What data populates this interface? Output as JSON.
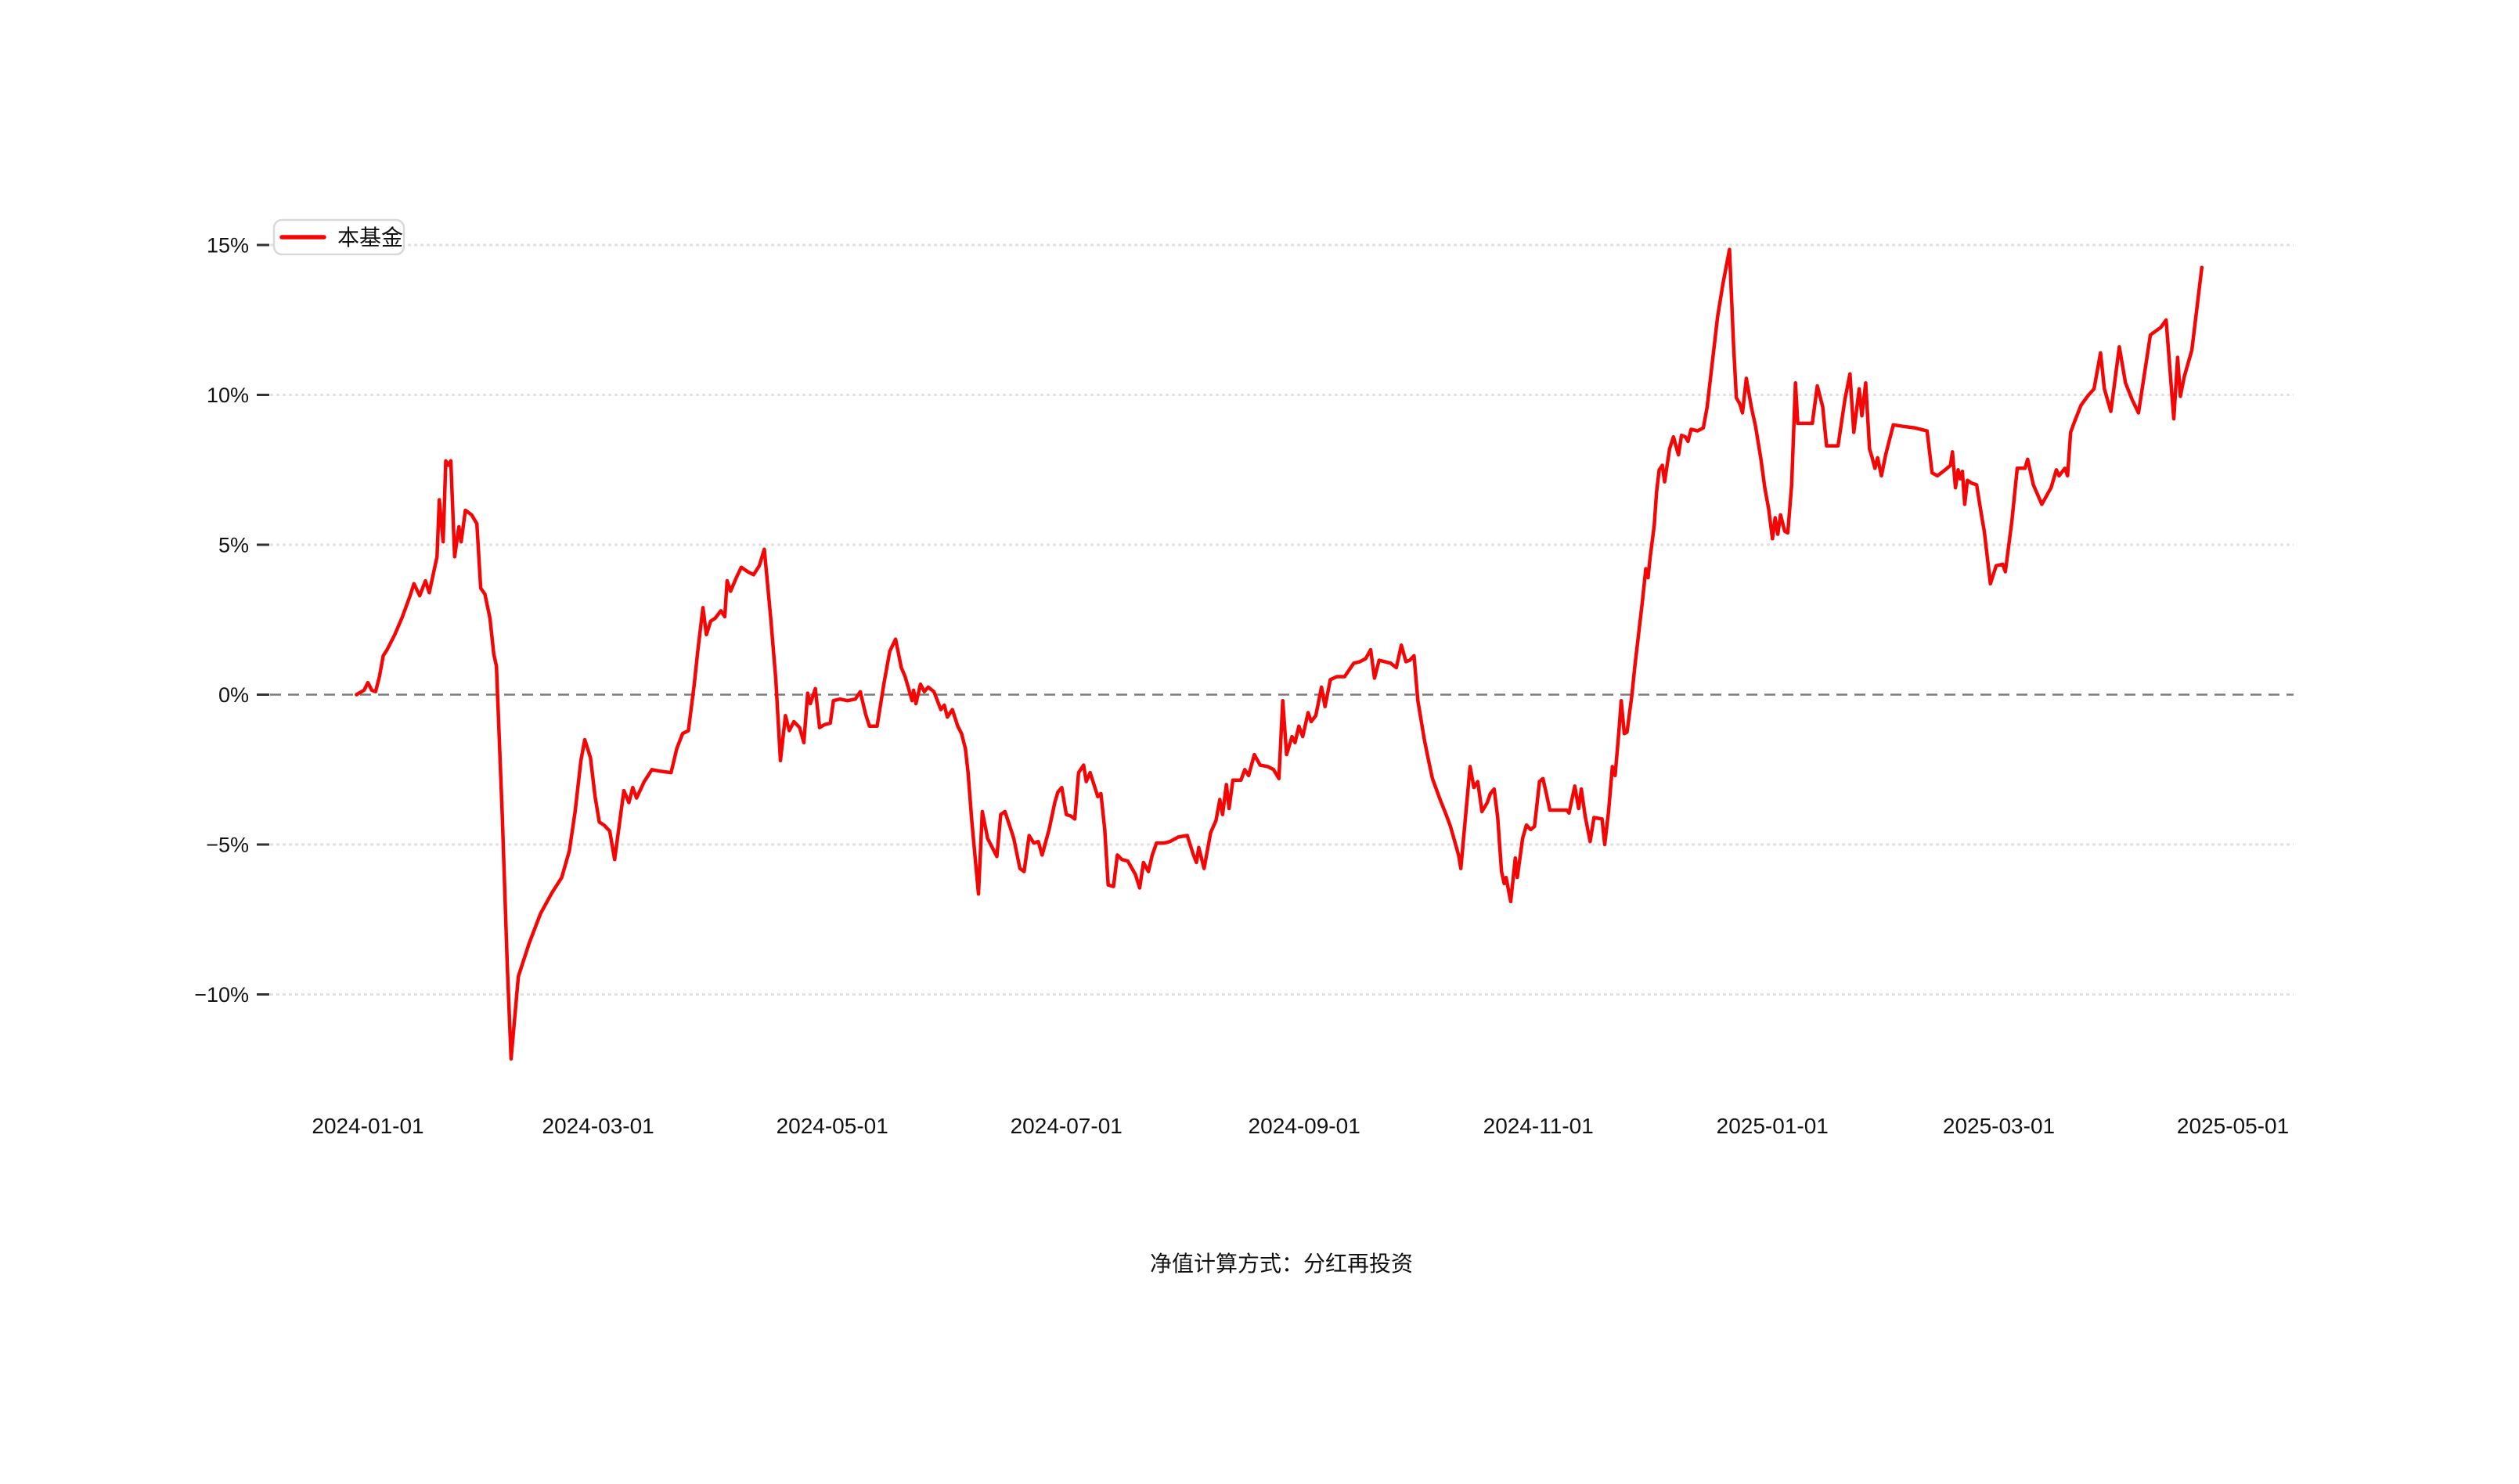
{
  "legend": {
    "label": "本基金"
  },
  "caption": {
    "text": "净值计算方式：分红再投资"
  },
  "colors": {
    "background": "#ffffff",
    "series_line": "#f40606",
    "gridline": "#e2e2e2",
    "zero_line": "#7a7a7a",
    "axis_text": "#111111",
    "tick_mark": "#333333",
    "legend_border": "#d9d9d9",
    "legend_fill": "#ffffff"
  },
  "chart_data": {
    "type": "line",
    "title": "",
    "legend_entries": [
      "本基金"
    ],
    "series_name": "本基金",
    "unit": "percent",
    "grid_on": true,
    "legend_position": "top-left",
    "x_axis": {
      "label": "",
      "tick_labels": [
        "2024-01-01",
        "2024-03-01",
        "2024-05-01",
        "2024-07-01",
        "2024-09-01",
        "2024-11-01",
        "2025-01-01",
        "2025-03-01",
        "2025-05-01"
      ],
      "tick_days": [
        0,
        60,
        121,
        182,
        244,
        305,
        366,
        425,
        486
      ],
      "domain_days": [
        -25.5,
        501.8
      ],
      "epoch": "days since 2024-01-01"
    },
    "y_axis": {
      "label": "",
      "tick_labels": [
        "15%",
        "10%",
        "5%",
        "0%",
        "−5%",
        "−10%"
      ],
      "tick_values": [
        15,
        10,
        5,
        0,
        -5,
        -10
      ],
      "range": [
        -13.5,
        16.5
      ],
      "zero_line_style": "dashed",
      "gridline_style": "dotted"
    },
    "points": [
      [
        -3,
        0
      ],
      [
        -1,
        0.15
      ],
      [
        0,
        0.4
      ],
      [
        1,
        0.15
      ],
      [
        2,
        0.1
      ],
      [
        3,
        0.6
      ],
      [
        4,
        1.3
      ],
      [
        5,
        1.5
      ],
      [
        7,
        2.0
      ],
      [
        9,
        2.6
      ],
      [
        11,
        3.3
      ],
      [
        12,
        3.7
      ],
      [
        13.5,
        3.3
      ],
      [
        15,
        3.8
      ],
      [
        16,
        3.4
      ],
      [
        17,
        4.0
      ],
      [
        18,
        4.6
      ],
      [
        18.6,
        6.5
      ],
      [
        19.6,
        5.1
      ],
      [
        20.3,
        7.8
      ],
      [
        20.9,
        7.65
      ],
      [
        21.6,
        7.8
      ],
      [
        22.6,
        4.6
      ],
      [
        23.7,
        5.6
      ],
      [
        24.3,
        5.1
      ],
      [
        25.4,
        6.15
      ],
      [
        27,
        6.0
      ],
      [
        28.4,
        5.7
      ],
      [
        29.4,
        3.55
      ],
      [
        30.5,
        3.35
      ],
      [
        31.8,
        2.55
      ],
      [
        32.8,
        1.35
      ],
      [
        33.5,
        0.95
      ],
      [
        35,
        -4.0
      ],
      [
        36.3,
        -9.0
      ],
      [
        37.3,
        -12.15
      ],
      [
        39.2,
        -9.4
      ],
      [
        42,
        -8.3
      ],
      [
        45,
        -7.3
      ],
      [
        48,
        -6.6
      ],
      [
        50.5,
        -6.1
      ],
      [
        52.5,
        -5.2
      ],
      [
        54,
        -3.9
      ],
      [
        55.5,
        -2.2
      ],
      [
        56.5,
        -1.5
      ],
      [
        58,
        -2.1
      ],
      [
        59.2,
        -3.4
      ],
      [
        60.3,
        -4.25
      ],
      [
        61.5,
        -4.35
      ],
      [
        63,
        -4.55
      ],
      [
        64.3,
        -5.5
      ],
      [
        66.7,
        -3.2
      ],
      [
        68,
        -3.6
      ],
      [
        69,
        -3.1
      ],
      [
        70,
        -3.45
      ],
      [
        72,
        -2.9
      ],
      [
        74,
        -2.5
      ],
      [
        76,
        -2.55
      ],
      [
        79,
        -2.6
      ],
      [
        80.5,
        -1.8
      ],
      [
        82,
        -1.3
      ],
      [
        83.5,
        -1.2
      ],
      [
        85,
        0.3
      ],
      [
        86,
        1.5
      ],
      [
        87.3,
        2.9
      ],
      [
        88.2,
        2.0
      ],
      [
        89.3,
        2.45
      ],
      [
        90.5,
        2.55
      ],
      [
        92,
        2.8
      ],
      [
        93,
        2.6
      ],
      [
        93.6,
        3.8
      ],
      [
        94.5,
        3.45
      ],
      [
        96,
        3.9
      ],
      [
        97.3,
        4.25
      ],
      [
        99,
        4.1
      ],
      [
        100.5,
        4.0
      ],
      [
        102,
        4.3
      ],
      [
        103.3,
        4.85
      ],
      [
        105,
        2.5
      ],
      [
        106.3,
        0.5
      ],
      [
        107.5,
        -2.2
      ],
      [
        108.8,
        -0.7
      ],
      [
        109.8,
        -1.2
      ],
      [
        111,
        -0.9
      ],
      [
        112.5,
        -1.1
      ],
      [
        113.6,
        -1.6
      ],
      [
        114.6,
        0.05
      ],
      [
        115.3,
        -0.3
      ],
      [
        116.6,
        0.2
      ],
      [
        117.7,
        -1.1
      ],
      [
        119,
        -1.0
      ],
      [
        120.5,
        -0.95
      ],
      [
        121.3,
        -0.2
      ],
      [
        123,
        -0.15
      ],
      [
        125,
        -0.2
      ],
      [
        127,
        -0.15
      ],
      [
        128.3,
        0.1
      ],
      [
        129.7,
        -0.65
      ],
      [
        130.7,
        -1.05
      ],
      [
        132.7,
        -1.05
      ],
      [
        134.5,
        0.4
      ],
      [
        136,
        1.45
      ],
      [
        137.5,
        1.85
      ],
      [
        139,
        0.9
      ],
      [
        140,
        0.6
      ],
      [
        141.8,
        -0.2
      ],
      [
        142.2,
        0.15
      ],
      [
        142.8,
        -0.3
      ],
      [
        144,
        0.35
      ],
      [
        145,
        0.1
      ],
      [
        146,
        0.25
      ],
      [
        147.5,
        0.1
      ],
      [
        149.3,
        -0.5
      ],
      [
        150.2,
        -0.35
      ],
      [
        151,
        -0.75
      ],
      [
        152.3,
        -0.5
      ],
      [
        153.7,
        -1.05
      ],
      [
        154.7,
        -1.3
      ],
      [
        155.7,
        -1.8
      ],
      [
        156.4,
        -2.6
      ],
      [
        157.4,
        -4.25
      ],
      [
        159.1,
        -6.65
      ],
      [
        160.1,
        -3.9
      ],
      [
        161.5,
        -4.8
      ],
      [
        163.9,
        -5.4
      ],
      [
        164.9,
        -4.0
      ],
      [
        166,
        -3.9
      ],
      [
        167.3,
        -4.4
      ],
      [
        168.3,
        -4.8
      ],
      [
        169.9,
        -5.8
      ],
      [
        171,
        -5.9
      ],
      [
        172.3,
        -4.7
      ],
      [
        173.5,
        -4.95
      ],
      [
        174.7,
        -4.9
      ],
      [
        175.7,
        -5.35
      ],
      [
        177.5,
        -4.5
      ],
      [
        179,
        -3.6
      ],
      [
        179.8,
        -3.25
      ],
      [
        180.8,
        -3.1
      ],
      [
        182,
        -4.0
      ],
      [
        183.2,
        -4.05
      ],
      [
        184.2,
        -4.15
      ],
      [
        185.2,
        -2.6
      ],
      [
        186.5,
        -2.35
      ],
      [
        187.2,
        -2.9
      ],
      [
        188.2,
        -2.6
      ],
      [
        190.2,
        -3.4
      ],
      [
        191,
        -3.3
      ],
      [
        192,
        -4.5
      ],
      [
        192.9,
        -6.35
      ],
      [
        194.3,
        -6.4
      ],
      [
        195.3,
        -5.35
      ],
      [
        196.5,
        -5.5
      ],
      [
        198,
        -5.55
      ],
      [
        200,
        -6.0
      ],
      [
        201.1,
        -6.45
      ],
      [
        202.1,
        -5.6
      ],
      [
        203.4,
        -5.9
      ],
      [
        204.4,
        -5.35
      ],
      [
        205.5,
        -4.95
      ],
      [
        207.5,
        -4.95
      ],
      [
        209,
        -4.9
      ],
      [
        211.2,
        -4.75
      ],
      [
        213.5,
        -4.7
      ],
      [
        215,
        -5.3
      ],
      [
        215.9,
        -5.6
      ],
      [
        216.5,
        -5.1
      ],
      [
        217.9,
        -5.8
      ],
      [
        219.6,
        -4.6
      ],
      [
        221,
        -4.2
      ],
      [
        222,
        -3.5
      ],
      [
        222.7,
        -4.0
      ],
      [
        223.7,
        -3.0
      ],
      [
        224.4,
        -3.8
      ],
      [
        225.4,
        -2.85
      ],
      [
        227.5,
        -2.85
      ],
      [
        228.5,
        -2.5
      ],
      [
        229.5,
        -2.7
      ],
      [
        231,
        -2.0
      ],
      [
        232.5,
        -2.35
      ],
      [
        234.5,
        -2.4
      ],
      [
        236,
        -2.5
      ],
      [
        237.4,
        -2.8
      ],
      [
        238.4,
        -0.2
      ],
      [
        239.4,
        -2.0
      ],
      [
        240.8,
        -1.4
      ],
      [
        241.6,
        -1.6
      ],
      [
        242.6,
        -1.05
      ],
      [
        243.6,
        -1.4
      ],
      [
        245,
        -0.6
      ],
      [
        245.8,
        -0.9
      ],
      [
        247,
        -0.7
      ],
      [
        248.5,
        0.25
      ],
      [
        249.4,
        -0.4
      ],
      [
        250.8,
        0.5
      ],
      [
        252.5,
        0.6
      ],
      [
        254.5,
        0.6
      ],
      [
        256.9,
        1.05
      ],
      [
        258.5,
        1.1
      ],
      [
        260,
        1.2
      ],
      [
        261.3,
        1.5
      ],
      [
        262.3,
        0.55
      ],
      [
        263.5,
        1.15
      ],
      [
        265,
        1.1
      ],
      [
        266.5,
        1.05
      ],
      [
        268,
        0.9
      ],
      [
        269.3,
        1.65
      ],
      [
        270.5,
        1.1
      ],
      [
        271.5,
        1.15
      ],
      [
        272.6,
        1.3
      ],
      [
        273.6,
        -0.2
      ],
      [
        275.3,
        -1.5
      ],
      [
        276.4,
        -2.2
      ],
      [
        277.4,
        -2.8
      ],
      [
        279.4,
        -3.5
      ],
      [
        281.1,
        -4.05
      ],
      [
        282.1,
        -4.4
      ],
      [
        284.2,
        -5.35
      ],
      [
        284.8,
        -5.8
      ],
      [
        287.2,
        -2.4
      ],
      [
        288.2,
        -3.1
      ],
      [
        289.2,
        -2.9
      ],
      [
        290.3,
        -3.9
      ],
      [
        291.7,
        -3.6
      ],
      [
        292.5,
        -3.3
      ],
      [
        293.5,
        -3.15
      ],
      [
        294.4,
        -4.1
      ],
      [
        295.4,
        -5.9
      ],
      [
        296.1,
        -6.3
      ],
      [
        296.6,
        -6.1
      ],
      [
        297.8,
        -6.9
      ],
      [
        299,
        -5.45
      ],
      [
        299.5,
        -6.1
      ],
      [
        300.9,
        -4.8
      ],
      [
        301.9,
        -4.35
      ],
      [
        303,
        -4.5
      ],
      [
        304,
        -4.4
      ],
      [
        305.3,
        -2.9
      ],
      [
        306.2,
        -2.8
      ],
      [
        307,
        -3.25
      ],
      [
        308,
        -3.85
      ],
      [
        310,
        -3.85
      ],
      [
        312.4,
        -3.85
      ],
      [
        313,
        -3.95
      ],
      [
        314.5,
        -3.05
      ],
      [
        315.5,
        -3.8
      ],
      [
        316.2,
        -3.15
      ],
      [
        317.2,
        -4.05
      ],
      [
        318.5,
        -4.9
      ],
      [
        319.5,
        -4.1
      ],
      [
        321.6,
        -4.15
      ],
      [
        322.3,
        -5.0
      ],
      [
        323.3,
        -3.9
      ],
      [
        324.3,
        -2.4
      ],
      [
        325,
        -2.7
      ],
      [
        326,
        -1.2
      ],
      [
        326.6,
        -0.2
      ],
      [
        327.4,
        -1.3
      ],
      [
        328.1,
        -1.25
      ],
      [
        329.4,
        0.0
      ],
      [
        330.1,
        0.9
      ],
      [
        331.1,
        2.0
      ],
      [
        332.1,
        3.1
      ],
      [
        333,
        4.2
      ],
      [
        333.6,
        3.9
      ],
      [
        334.1,
        4.55
      ],
      [
        335.2,
        5.65
      ],
      [
        335.8,
        6.75
      ],
      [
        336.5,
        7.5
      ],
      [
        337.3,
        7.65
      ],
      [
        337.9,
        7.1
      ],
      [
        339.2,
        8.2
      ],
      [
        340.2,
        8.6
      ],
      [
        341.5,
        8.0
      ],
      [
        342.3,
        8.65
      ],
      [
        343.3,
        8.6
      ],
      [
        344,
        8.45
      ],
      [
        344.8,
        8.85
      ],
      [
        346.5,
        8.8
      ],
      [
        348,
        8.9
      ],
      [
        349,
        9.6
      ],
      [
        350.7,
        11.5
      ],
      [
        351.7,
        12.6
      ],
      [
        353.1,
        13.7
      ],
      [
        354.8,
        14.85
      ],
      [
        355.9,
        11.6
      ],
      [
        356.6,
        9.9
      ],
      [
        357.5,
        9.7
      ],
      [
        358.2,
        9.4
      ],
      [
        359.2,
        10.55
      ],
      [
        360.5,
        9.6
      ],
      [
        361.6,
        8.95
      ],
      [
        363,
        7.85
      ],
      [
        364,
        6.9
      ],
      [
        365,
        6.2
      ],
      [
        366,
        5.2
      ],
      [
        366.7,
        5.9
      ],
      [
        367.4,
        5.35
      ],
      [
        368.1,
        6.0
      ],
      [
        369.2,
        5.45
      ],
      [
        370,
        5.4
      ],
      [
        371,
        7.0
      ],
      [
        372,
        10.4
      ],
      [
        372.6,
        9.05
      ],
      [
        376.4,
        9.05
      ],
      [
        377.7,
        10.3
      ],
      [
        379.1,
        9.6
      ],
      [
        380.1,
        8.3
      ],
      [
        383.1,
        8.3
      ],
      [
        384.9,
        9.85
      ],
      [
        386.2,
        10.7
      ],
      [
        387.2,
        8.75
      ],
      [
        388.6,
        10.2
      ],
      [
        389.3,
        9.3
      ],
      [
        390.3,
        10.4
      ],
      [
        391.3,
        8.2
      ],
      [
        392,
        7.9
      ],
      [
        392.7,
        7.55
      ],
      [
        393.4,
        7.9
      ],
      [
        394.4,
        7.3
      ],
      [
        395.5,
        8.0
      ],
      [
        397.5,
        9.0
      ],
      [
        400,
        8.95
      ],
      [
        403,
        8.9
      ],
      [
        406.3,
        8.8
      ],
      [
        407.6,
        7.4
      ],
      [
        409,
        7.3
      ],
      [
        411,
        7.5
      ],
      [
        412.4,
        7.65
      ],
      [
        412.9,
        8.1
      ],
      [
        413.7,
        6.9
      ],
      [
        414.4,
        7.5
      ],
      [
        414.9,
        7.2
      ],
      [
        415.5,
        7.45
      ],
      [
        416.1,
        6.35
      ],
      [
        416.8,
        7.15
      ],
      [
        418,
        7.05
      ],
      [
        419.2,
        7.0
      ],
      [
        420.6,
        5.9
      ],
      [
        421.2,
        5.45
      ],
      [
        422.8,
        3.7
      ],
      [
        424.3,
        4.3
      ],
      [
        426,
        4.35
      ],
      [
        426.7,
        4.1
      ],
      [
        428.4,
        5.8
      ],
      [
        429.8,
        7.55
      ],
      [
        431.8,
        7.55
      ],
      [
        432.5,
        7.85
      ],
      [
        434,
        7.0
      ],
      [
        436.2,
        6.35
      ],
      [
        438.6,
        6.9
      ],
      [
        440,
        7.5
      ],
      [
        440.7,
        7.3
      ],
      [
        442.2,
        7.55
      ],
      [
        442.9,
        7.3
      ],
      [
        443.7,
        8.75
      ],
      [
        444.7,
        9.1
      ],
      [
        446.4,
        9.65
      ],
      [
        448.1,
        9.95
      ],
      [
        449.8,
        10.2
      ],
      [
        451.5,
        11.4
      ],
      [
        452.5,
        10.2
      ],
      [
        454.2,
        9.45
      ],
      [
        456.4,
        11.6
      ],
      [
        458,
        10.4
      ],
      [
        459.7,
        9.85
      ],
      [
        461.4,
        9.4
      ],
      [
        464.5,
        12.0
      ],
      [
        467.2,
        12.25
      ],
      [
        468.6,
        12.5
      ],
      [
        470.6,
        9.2
      ],
      [
        471.6,
        11.25
      ],
      [
        472.3,
        9.95
      ],
      [
        473.3,
        10.6
      ],
      [
        475.3,
        11.5
      ],
      [
        477.9,
        14.25
      ]
    ]
  }
}
